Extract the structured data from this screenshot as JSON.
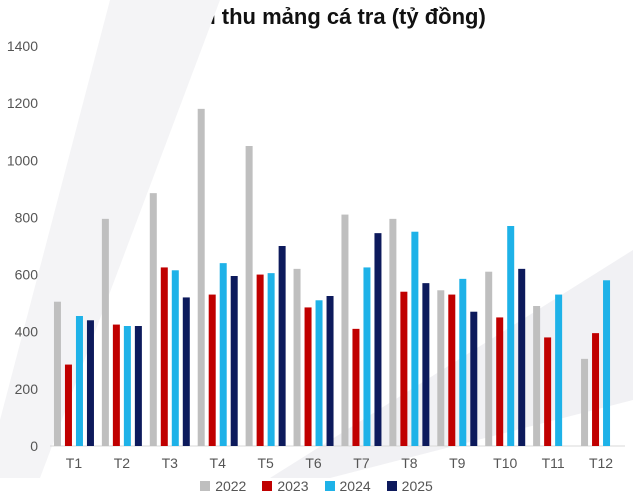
{
  "chart_data": {
    "type": "bar",
    "title": "Doanh thu mảng cá tra (tỷ đồng)",
    "xlabel": "",
    "ylabel": "",
    "ylim": [
      0,
      1400
    ],
    "yticks": [
      0,
      200,
      400,
      600,
      800,
      1000,
      1200,
      1400
    ],
    "grid": false,
    "legend_position": "bottom",
    "categories": [
      "T1",
      "T2",
      "T3",
      "T4",
      "T5",
      "T6",
      "T7",
      "T8",
      "T9",
      "T10",
      "T11",
      "T12"
    ],
    "series": [
      {
        "name": "2022",
        "color": "#bfbfbf",
        "values": [
          505,
          795,
          885,
          1180,
          1050,
          620,
          810,
          795,
          545,
          610,
          490,
          305
        ]
      },
      {
        "name": "2023",
        "color": "#c00000",
        "values": [
          285,
          425,
          625,
          530,
          600,
          485,
          410,
          540,
          530,
          450,
          380,
          395
        ]
      },
      {
        "name": "2024",
        "color": "#1eb2e8",
        "values": [
          455,
          420,
          615,
          640,
          605,
          510,
          625,
          750,
          585,
          770,
          530,
          580
        ]
      },
      {
        "name": "2025",
        "color": "#0d1a5c",
        "values": [
          440,
          420,
          520,
          595,
          700,
          525,
          745,
          570,
          470,
          620,
          null,
          null
        ]
      }
    ]
  }
}
